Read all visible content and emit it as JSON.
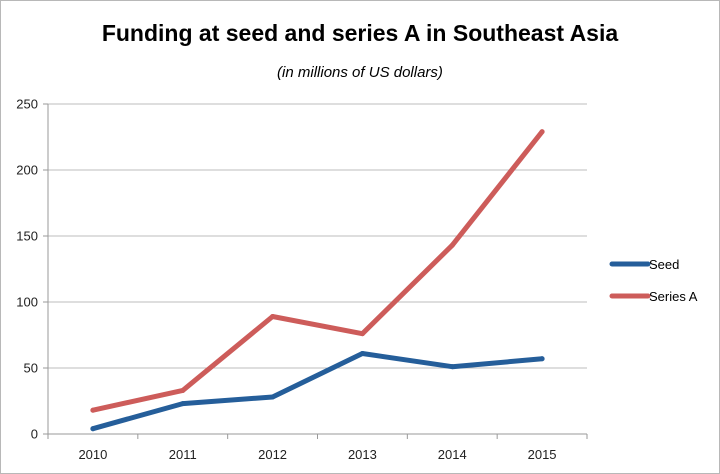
{
  "chart_data": {
    "type": "line",
    "title": "Funding at seed and series A in Southeast Asia",
    "subtitle": "(in millions of US dollars)",
    "xlabel": "",
    "ylabel": "",
    "x": [
      "2010",
      "2011",
      "2012",
      "2013",
      "2014",
      "2015"
    ],
    "ylim": [
      0,
      250
    ],
    "yticks": [
      0,
      50,
      100,
      150,
      200,
      250
    ],
    "grid": true,
    "legend_position": "right",
    "series": [
      {
        "name": "Seed",
        "color": "#255e9a",
        "values": [
          4,
          23,
          28,
          61,
          51,
          57
        ]
      },
      {
        "name": "Series A",
        "color": "#cd5c5a",
        "values": [
          18,
          33,
          89,
          76,
          143,
          229
        ]
      }
    ]
  }
}
